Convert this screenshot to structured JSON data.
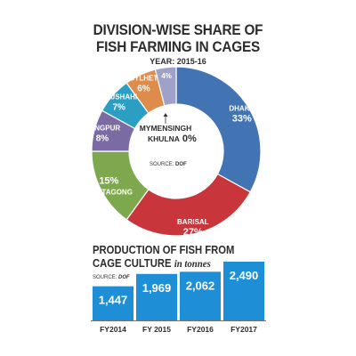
{
  "header": {
    "title_line1": "DIVISION-WISE SHARE OF",
    "title_line2": "FISH FARMING IN CAGES",
    "year": "YEAR: 2015-16"
  },
  "chart_data": [
    {
      "type": "pie",
      "title": "DIVISION-WISE SHARE OF FISH FARMING IN CAGES",
      "subtitle": "YEAR: 2015-16",
      "source": "DOF",
      "slices": [
        {
          "name": "DHAKA",
          "value": 33,
          "label": "33%",
          "color": "#4273b3"
        },
        {
          "name": "BARISAL",
          "value": 27,
          "label": "27%",
          "color": "#c8353b"
        },
        {
          "name": "CHITTAGONG",
          "value": 15,
          "label": "15%",
          "color": "#7ea84e"
        },
        {
          "name": "RANGPUR",
          "value": 8,
          "label": "8%",
          "color": "#7b6ba3"
        },
        {
          "name": "RAJSHAHI",
          "value": 7,
          "label": "7%",
          "color": "#2b9fc3"
        },
        {
          "name": "SYLHET",
          "value": 6,
          "label": "6%",
          "color": "#dd8c4b"
        },
        {
          "name": "MYMENSINGH",
          "value": 4,
          "label": "4%",
          "color": "#9ea2c9"
        },
        {
          "name": "KHULNA",
          "value": 0,
          "label": "0%",
          "color": "#9ea2c9"
        }
      ],
      "center_labels": {
        "mymensingh": "MYMENSINGH",
        "khulna": "KHULNA",
        "khulna_value": "0%",
        "source_prefix": "SOURCE: ",
        "source_name": "DOF"
      }
    },
    {
      "type": "bar",
      "title_line1": "PRODUCTION OF FISH FROM",
      "title_line2": "CAGE CULTURE",
      "unit_note": "in tonnes",
      "source": "DOF",
      "categories": [
        "FY2014",
        "FY 2015",
        "FY2016",
        "FY2017"
      ],
      "values": [
        1447,
        1969,
        2062,
        2490
      ],
      "value_labels": [
        "1,447",
        "1,969",
        "2,062",
        "2,490"
      ],
      "color": "#1e8fd6"
    }
  ],
  "bar_source": {
    "prefix": "SOURCE: ",
    "name": "DOF"
  },
  "colors": {
    "accent": "#1e8fd6",
    "text": "#2c2c2c"
  }
}
